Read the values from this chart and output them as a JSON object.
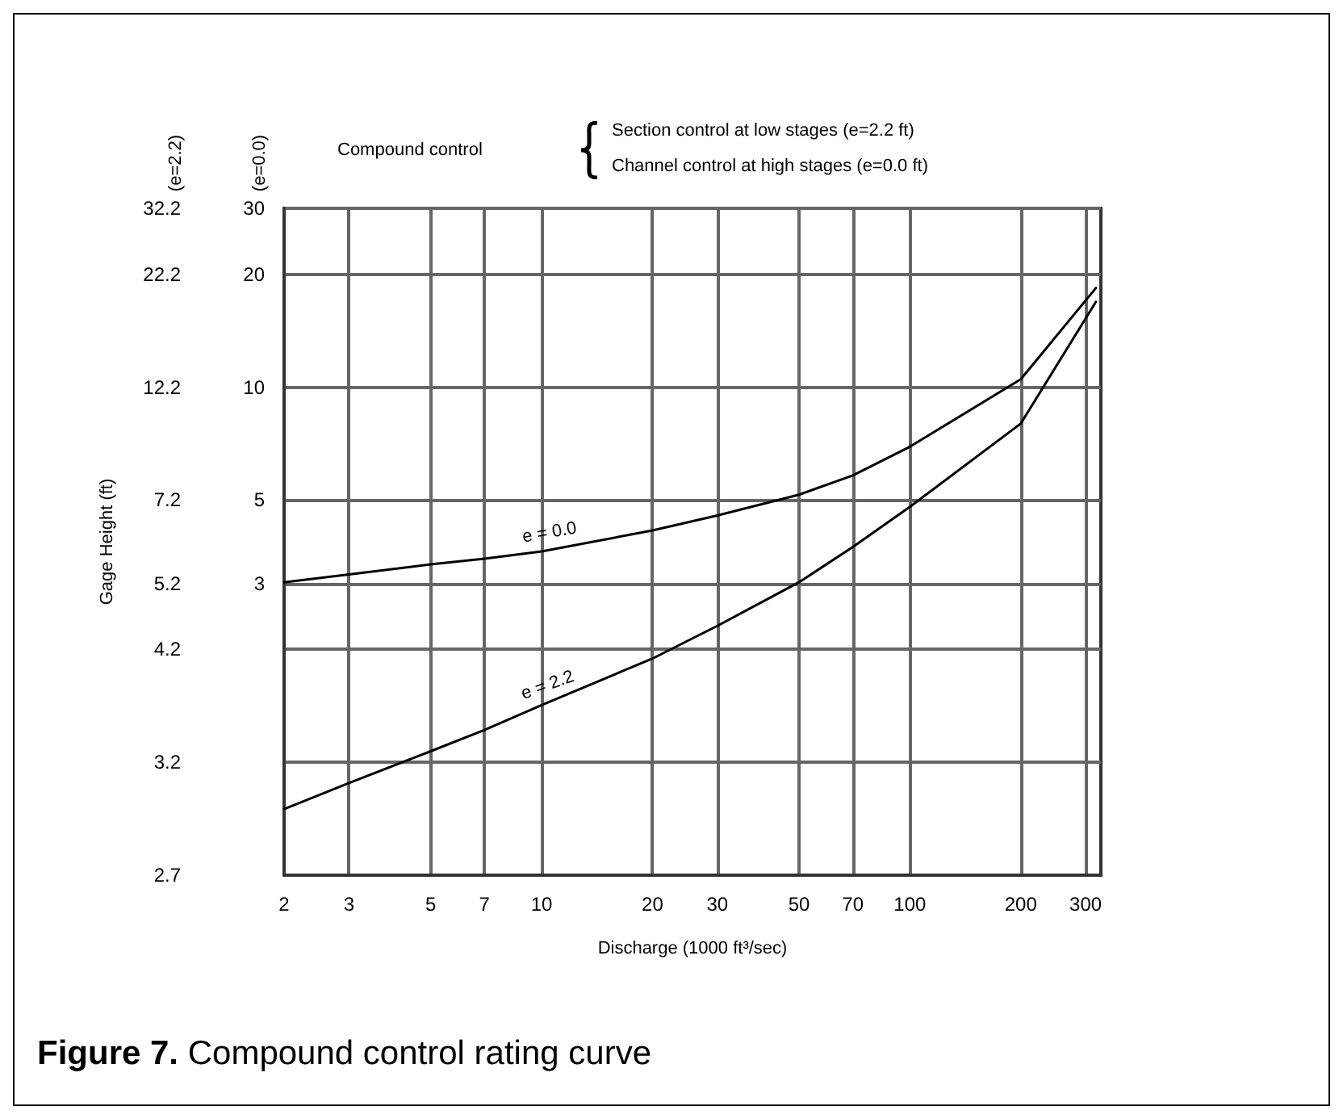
{
  "chart_data": {
    "type": "line",
    "title": "Figure 7. Compound control rating curve",
    "xlabel": "Discharge (1000 ft³/sec)",
    "annotations": [
      "(e=2.2)",
      "(e=0.0)",
      "Compound control",
      "Section control at low stages (e=2.2 ft)",
      "Channel control at high stages (e=0.0 ft)",
      "Gage Height (ft)",
      "32.2",
      "22.2",
      "12.2",
      "7.2",
      "5.2",
      "4.2",
      "3.2",
      "2.7"
    ],
    "log": "xy",
    "grid": true,
    "marker": "none",
    "line_style": "solid",
    "xlim": [
      2,
      330
    ],
    "xticks": [
      2,
      3,
      5,
      7,
      10,
      20,
      30,
      50,
      70,
      100,
      200,
      300
    ],
    "ylim": [
      0.5,
      30
    ],
    "yticks": [
      30,
      20,
      10,
      5,
      3,
      {
        "value": 2,
        "label": null
      },
      {
        "value": 1,
        "label": null
      },
      {
        "value": 0.5,
        "label": null
      }
    ],
    "series": [
      {
        "name": "e = 0.0",
        "color": "#000000",
        "x": [
          2,
          3,
          5,
          7,
          10,
          20,
          30,
          50,
          70,
          100,
          200,
          320
        ],
        "values": [
          3.02,
          3.17,
          3.37,
          3.49,
          3.65,
          4.15,
          4.55,
          5.17,
          5.82,
          6.94,
          10.5,
          18.4
        ]
      },
      {
        "name": "e = 2.2",
        "color": "#000000",
        "x": [
          2,
          3,
          5,
          7,
          10,
          20,
          30,
          50,
          70,
          100,
          200,
          320
        ],
        "values": [
          0.75,
          0.88,
          1.07,
          1.22,
          1.42,
          1.89,
          2.31,
          3.02,
          3.75,
          4.8,
          8.0,
          16.9
        ]
      }
    ]
  }
}
